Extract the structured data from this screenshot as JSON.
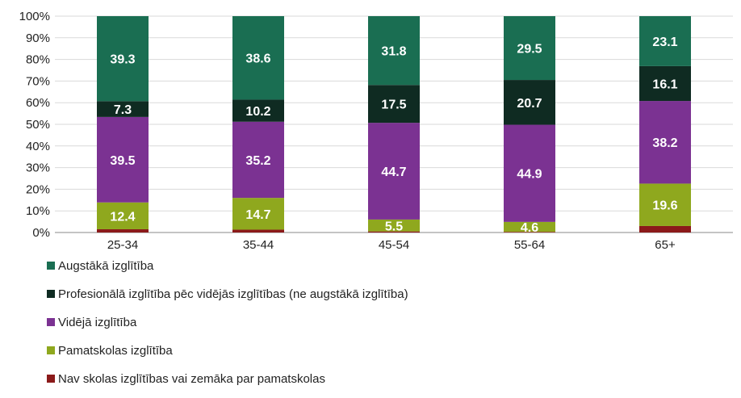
{
  "chart_data": {
    "type": "bar",
    "stacked": true,
    "categories": [
      "25-34",
      "35-44",
      "45-54",
      "55-64",
      "65+"
    ],
    "ylim": [
      0,
      100
    ],
    "yticks": [
      "0%",
      "10%",
      "20%",
      "30%",
      "40%",
      "50%",
      "60%",
      "70%",
      "80%",
      "90%",
      "100%"
    ],
    "grid": true,
    "legend_position": "bottom-left",
    "series": [
      {
        "name": "Nav skolas izglītības vai zemāka par pamatskolas",
        "color": "#8b1a1a",
        "values": [
          1.5,
          1.3,
          0.5,
          0.3,
          3.0
        ],
        "labels": [
          "",
          "",
          "",
          "",
          ""
        ]
      },
      {
        "name": "Pamatskolas izglītība",
        "color": "#8fa81e",
        "values": [
          12.4,
          14.7,
          5.5,
          4.6,
          19.6
        ],
        "labels": [
          "12.4",
          "14.7",
          "5.5",
          "4.6",
          "19.6"
        ]
      },
      {
        "name": "Vidējā izglītība",
        "color": "#7b3292",
        "values": [
          39.5,
          35.2,
          44.7,
          44.9,
          38.2
        ],
        "labels": [
          "39.5",
          "35.2",
          "44.7",
          "44.9",
          "38.2"
        ]
      },
      {
        "name": "Profesionālā izglītība pēc vidējās izglītības (ne augstākā izglītība)",
        "color": "#0f2b22",
        "values": [
          7.3,
          10.2,
          17.5,
          20.7,
          16.1
        ],
        "labels": [
          "7.3",
          "10.2",
          "17.5",
          "20.7",
          "16.1"
        ]
      },
      {
        "name": "Augstākā izglītība",
        "color": "#1a6e52",
        "values": [
          39.3,
          38.6,
          31.8,
          29.5,
          23.1
        ],
        "labels": [
          "39.3",
          "38.6",
          "31.8",
          "29.5",
          "23.1"
        ]
      }
    ],
    "legend_order": [
      4,
      3,
      2,
      1,
      0
    ]
  }
}
